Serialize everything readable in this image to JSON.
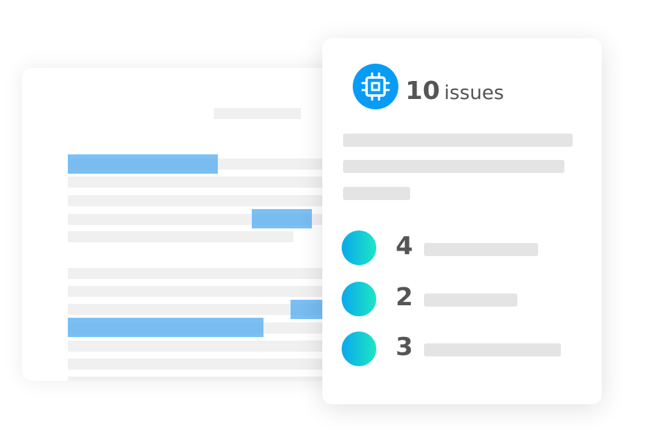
{
  "card": {
    "icon": "cpu-chip-icon",
    "issues_count": "10",
    "issues_label": "issues",
    "items": [
      {
        "count": "4"
      },
      {
        "count": "2"
      },
      {
        "count": "3"
      }
    ]
  },
  "colors": {
    "accent": "#0a9cf5",
    "highlight": "#7cc4ff",
    "gradient_start": "#0aa8ec",
    "gradient_end": "#1ee6c4"
  }
}
